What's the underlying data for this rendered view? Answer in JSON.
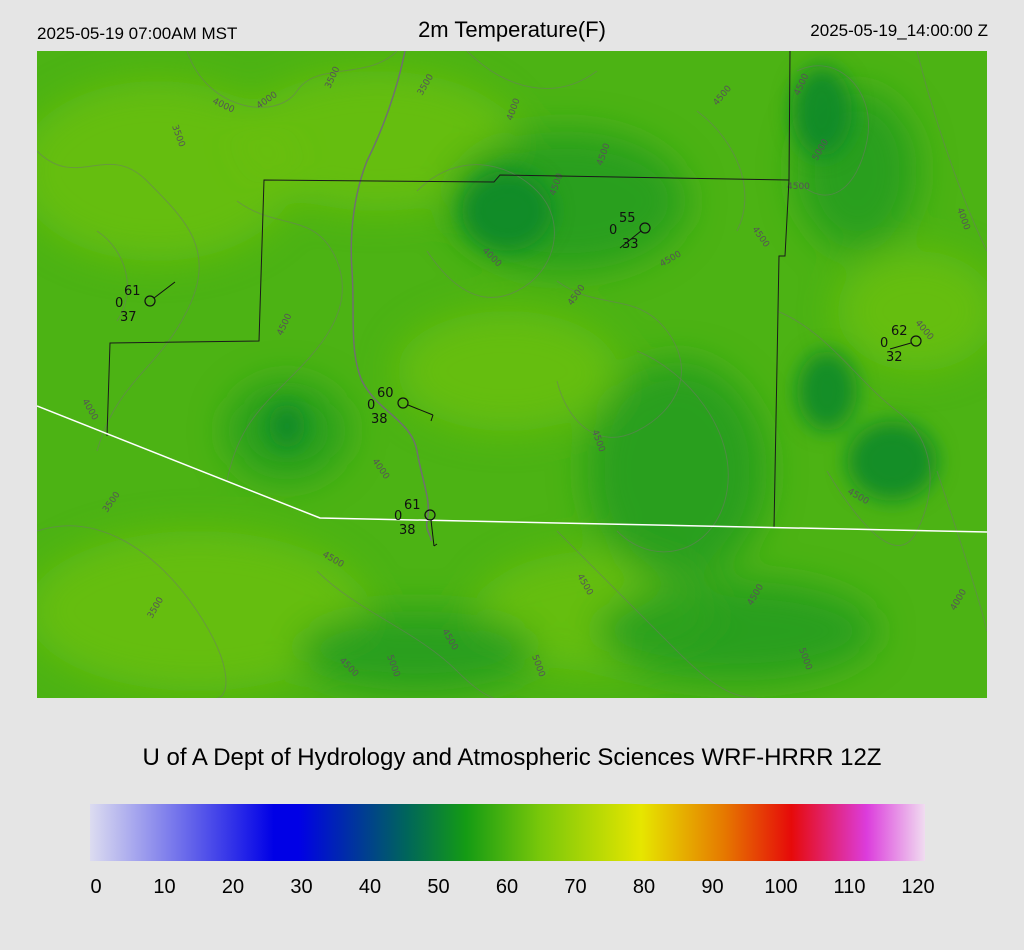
{
  "header": {
    "local_time": "2025-05-19 07:00AM MST",
    "title": "2m Temperature(F)",
    "utc_time": "2025-05-19_14:00:00 Z"
  },
  "credit": "U of A Dept of Hydrology and Atmospheric Sciences WRF-HRRR 12Z",
  "colorbar": {
    "ticks": [
      "0",
      "10",
      "20",
      "30",
      "40",
      "50",
      "60",
      "70",
      "80",
      "90",
      "100",
      "110",
      "120"
    ],
    "colors": {
      "low": "#dcdcf0",
      "blue": "#0000e6",
      "teal": "#00665a",
      "green": "#149b14",
      "lime": "#7ac80a",
      "yellow": "#e6e600",
      "orange": "#e67800",
      "red": "#e60a0a",
      "magenta": "#dc3cdc",
      "high": "#f0dcf0"
    }
  },
  "stations": [
    {
      "id": "st1",
      "temp": "61",
      "cloud": "0",
      "dew": "37"
    },
    {
      "id": "st2",
      "temp": "55",
      "cloud": "0",
      "dew": "33"
    },
    {
      "id": "st3",
      "temp": "62",
      "cloud": "0",
      "dew": "32"
    },
    {
      "id": "st4",
      "temp": "60",
      "cloud": "0",
      "dew": "38"
    },
    {
      "id": "st5",
      "temp": "61",
      "cloud": "0",
      "dew": "38"
    }
  ],
  "contour_labels": [
    "3500",
    "4000",
    "4500",
    "5000"
  ],
  "map_colors": {
    "base": "#4cb314",
    "light": "#6ac00e",
    "dark": "#1e9a1e",
    "darker": "#0e8a2a",
    "contour": "#6d7a66",
    "border": "#1a1a1a",
    "river": "#707070",
    "boundary": "#ffffff"
  }
}
